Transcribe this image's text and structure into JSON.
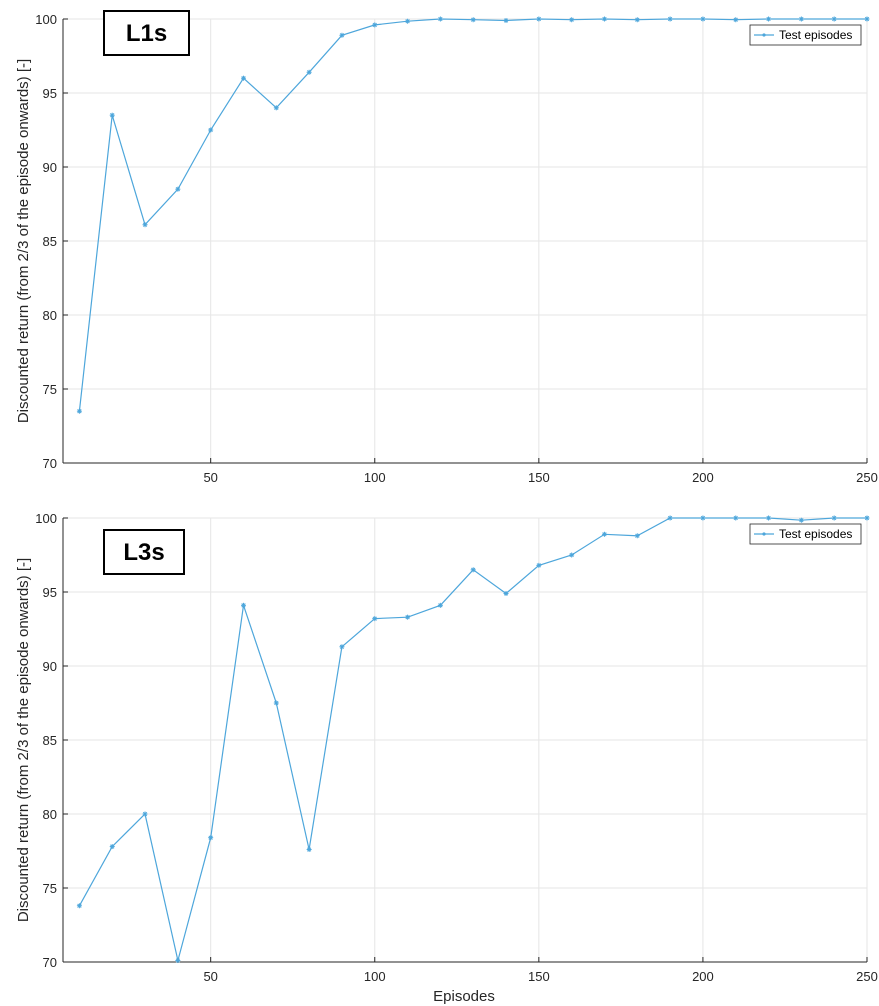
{
  "chart_data": [
    {
      "type": "line",
      "panel_tag": "L1s",
      "ylabel": "Discounted return (from 2/3 of the episode onwards) [-]",
      "xlabel": "",
      "xlim": [
        5,
        250
      ],
      "ylim": [
        70,
        100
      ],
      "xticks": [
        "50",
        "100",
        "150",
        "200",
        "250"
      ],
      "yticks": [
        "70",
        "75",
        "80",
        "85",
        "90",
        "95",
        "100"
      ],
      "grid": true,
      "legend_position": "top-right",
      "series": [
        {
          "name": "Test episodes",
          "color": "#4da6db",
          "marker": "star",
          "x": [
            10,
            20,
            30,
            40,
            50,
            60,
            70,
            80,
            90,
            100,
            110,
            120,
            130,
            140,
            150,
            160,
            170,
            180,
            190,
            200,
            210,
            220,
            230,
            240,
            250
          ],
          "y": [
            73.5,
            93.5,
            86.1,
            88.5,
            92.5,
            96.0,
            94.0,
            96.4,
            98.9,
            99.6,
            99.85,
            100.0,
            99.95,
            99.9,
            100.0,
            99.95,
            100.0,
            99.95,
            100.0,
            100.0,
            99.95,
            100.0,
            100.0,
            100.0,
            100.0
          ]
        }
      ]
    },
    {
      "type": "line",
      "panel_tag": "L3s",
      "ylabel": "Discounted return (from 2/3 of the episode onwards) [-]",
      "xlabel": "Episodes",
      "xlim": [
        5,
        250
      ],
      "ylim": [
        70,
        100
      ],
      "xticks": [
        "50",
        "100",
        "150",
        "200",
        "250"
      ],
      "yticks": [
        "70",
        "75",
        "80",
        "85",
        "90",
        "95",
        "100"
      ],
      "grid": true,
      "legend_position": "top-right",
      "series": [
        {
          "name": "Test episodes",
          "color": "#4da6db",
          "marker": "star",
          "x": [
            10,
            20,
            30,
            40,
            50,
            60,
            70,
            80,
            90,
            100,
            110,
            120,
            130,
            140,
            150,
            160,
            170,
            180,
            190,
            200,
            210,
            220,
            230,
            240,
            250
          ],
          "y": [
            73.8,
            77.8,
            80.0,
            70.1,
            78.4,
            94.1,
            87.5,
            77.6,
            91.3,
            93.2,
            93.3,
            94.1,
            96.5,
            94.9,
            96.8,
            97.5,
            98.9,
            98.8,
            100.0,
            100.0,
            100.0,
            100.0,
            99.85,
            100.0,
            100.0
          ]
        }
      ]
    }
  ]
}
